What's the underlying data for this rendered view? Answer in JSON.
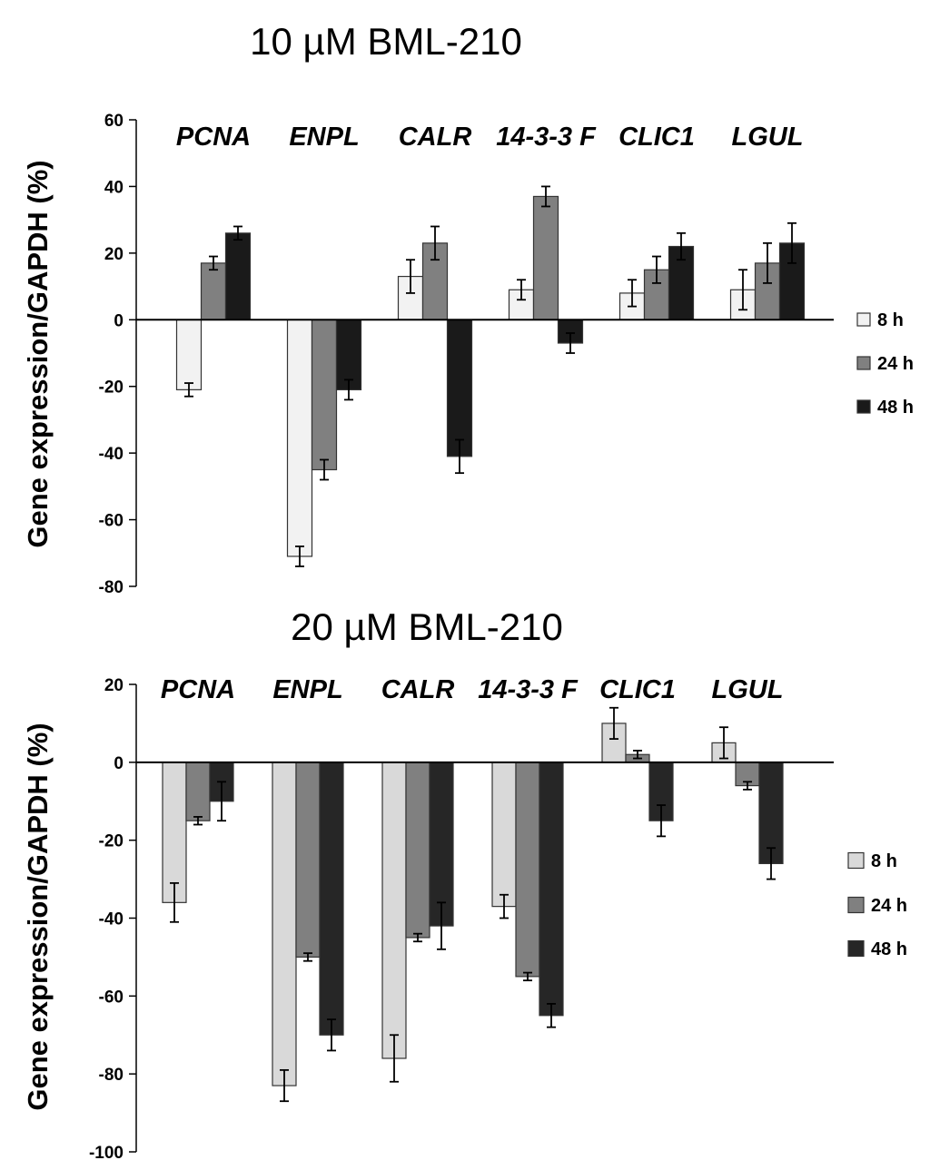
{
  "chart_data": [
    {
      "type": "bar",
      "title": "10 µM BML-210",
      "ylabel": "Gene expression/GAPDH (%)",
      "xlabel": "",
      "categories": [
        "PCNA",
        "ENPL",
        "CALR",
        "14-3-3 F",
        "CLIC1",
        "LGUL"
      ],
      "ylim": [
        -80,
        60
      ],
      "yticks": [
        60,
        40,
        20,
        0,
        -20,
        -40,
        -60,
        -80
      ],
      "legend_position": "right",
      "series": [
        {
          "name": "8 h",
          "color": "#f2f2f2",
          "values": [
            -21,
            -71,
            13,
            9,
            8,
            9
          ],
          "errors": [
            2,
            3,
            5,
            3,
            4,
            6
          ]
        },
        {
          "name": "24 h",
          "color": "#808080",
          "values": [
            17,
            -45,
            23,
            37,
            15,
            17
          ],
          "errors": [
            2,
            3,
            5,
            3,
            4,
            6
          ]
        },
        {
          "name": "48 h",
          "color": "#1a1a1a",
          "values": [
            26,
            -21,
            -41,
            -7,
            22,
            23
          ],
          "errors": [
            2,
            3,
            5,
            3,
            4,
            6
          ]
        }
      ]
    },
    {
      "type": "bar",
      "title": "20 µM BML-210",
      "ylabel": "Gene expression/GAPDH (%)",
      "xlabel": "",
      "categories": [
        "PCNA",
        "ENPL",
        "CALR",
        "14-3-3 F",
        "CLIC1",
        "LGUL"
      ],
      "ylim": [
        -100,
        20
      ],
      "yticks": [
        20,
        0,
        -20,
        -40,
        -60,
        -80,
        -100
      ],
      "legend_position": "right",
      "series": [
        {
          "name": "8 h",
          "color": "#d9d9d9",
          "values": [
            -36,
            -83,
            -76,
            -37,
            10,
            5
          ],
          "errors": [
            5,
            4,
            6,
            3,
            4,
            4
          ]
        },
        {
          "name": "24 h",
          "color": "#808080",
          "values": [
            -15,
            -50,
            -45,
            -55,
            2,
            -6
          ],
          "errors": [
            1,
            1,
            1,
            1,
            1,
            1
          ]
        },
        {
          "name": "48 h",
          "color": "#262626",
          "values": [
            -10,
            -70,
            -42,
            -65,
            -15,
            -26
          ],
          "errors": [
            5,
            4,
            6,
            3,
            4,
            4
          ]
        }
      ]
    }
  ]
}
